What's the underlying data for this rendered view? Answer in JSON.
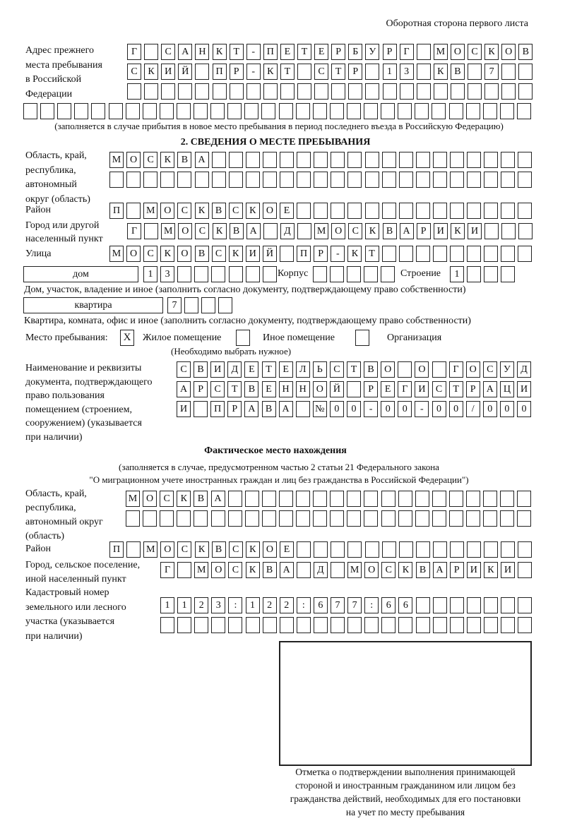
{
  "header": {
    "page_side": "Оборотная сторона первого листа"
  },
  "previous_address": {
    "label": "Адрес прежнего\nместа пребывания\nв Российской\nФедерации",
    "rows": [
      "Г САНКТ-ПЕТЕРБУРГ МОСКОВ",
      "СКИЙ ПР-КТ СТР 13 КВ 7",
      "",
      ""
    ],
    "note": "(заполняется в случае прибытия в новое место пребывания в период последнего въезда в Российскую Федерацию)"
  },
  "stay_section": {
    "title": "2. СВЕДЕНИЯ О МЕСТЕ ПРЕБЫВАНИЯ",
    "region_label": "Область, край,\nреспублика,\nавтономный\nокруг (область)",
    "region_rows": [
      "МОСКВА",
      ""
    ],
    "district_label": "Район",
    "district": "П МОСКВСКОЕ",
    "city_label": "Город или другой\nнаселенный пункт",
    "city": "Г МОСКВА Д МОСКВАРИКИ",
    "street_label": "Улица",
    "street": "МОСКОВСКИЙ ПР-КТ",
    "house_type": "дом",
    "house_number": "13",
    "building_label": "Корпус",
    "building": "",
    "structure_label": "Строение",
    "structure": "1",
    "house_note": "Дом, участок, владение и иное (заполнить согласно документу, подтверждающему право собственности)",
    "apartment_type": "квартира",
    "apartment_number": "7",
    "apartment_note": "Квартира, комната, офис и иное (заполнить согласно документу, подтверждающему право собственности)",
    "place_label": "Место пребывания:",
    "place_options": [
      {
        "label": "Жилое помещение",
        "checked": "X"
      },
      {
        "label": "Иное помещение",
        "checked": ""
      },
      {
        "label": "Организация",
        "checked": ""
      }
    ],
    "place_note": "(Необходимо выбрать нужное)",
    "document_label": "Наименование и реквизиты\nдокумента, подтверждающего\nправо пользования\nпомещением (строением,\nсооружением) (указывается\nпри наличии)",
    "document_rows": [
      "СВИДЕТЕЛЬСТВО О ГОСУД",
      "АРСТВЕННОЙ РЕГИСТРАЦИ",
      "И ПРАВА №00-00-00/000"
    ]
  },
  "actual_location": {
    "title": "Фактическое место нахождения",
    "note": "(заполняется в случае, предусмотренном частью 2 статьи 21 Федерального закона\n\"О миграционном учете иностранных граждан и лиц без гражданства в Российской Федерации\")",
    "region_label": "Область, край,\nреспублика,\nавтономный округ\n(область)",
    "region_rows": [
      "МОСКВА",
      ""
    ],
    "district_label": "Район",
    "district": "П МОСКВСКОЕ",
    "city_label": "Город, сельское поселение,\nиной населенный пункт",
    "city": "Г МОСКВА Д МОСКВАРИКИ",
    "cadastral_label": "Кадастровый номер\nземельного или лесного\nучастка (указывается\nпри наличии)",
    "cadastral_rows": [
      "1123:122:677:66",
      ""
    ]
  },
  "confirmation": {
    "caption": "Отметка о подтверждении выполнения принимающей\nстороной и иностранным гражданином или лицом без\nгражданства действий, необходимых для его постановки\nна учет по месту пребывания"
  }
}
